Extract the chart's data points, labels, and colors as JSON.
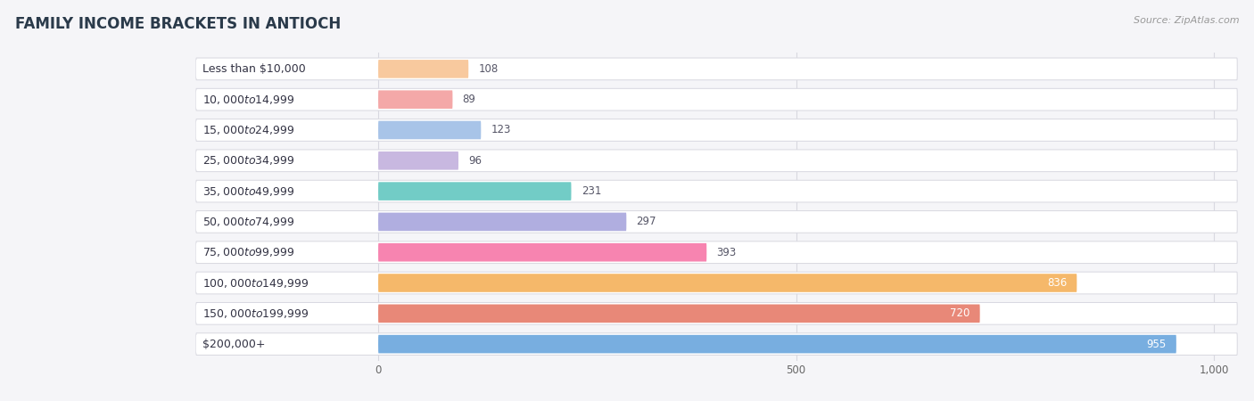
{
  "title": "FAMILY INCOME BRACKETS IN ANTIOCH",
  "source": "Source: ZipAtlas.com",
  "categories": [
    "Less than $10,000",
    "$10,000 to $14,999",
    "$15,000 to $24,999",
    "$25,000 to $34,999",
    "$35,000 to $49,999",
    "$50,000 to $74,999",
    "$75,000 to $99,999",
    "$100,000 to $149,999",
    "$150,000 to $199,999",
    "$200,000+"
  ],
  "values": [
    108,
    89,
    123,
    96,
    231,
    297,
    393,
    836,
    720,
    955
  ],
  "colors": [
    "#f8c99e",
    "#f4a8a8",
    "#a8c4e8",
    "#c8b8e0",
    "#72ccc6",
    "#b0aee0",
    "#f784b0",
    "#f5b86a",
    "#e88878",
    "#78aee0"
  ],
  "xmin": 0,
  "xmax": 1000,
  "xticks": [
    0,
    500,
    1000
  ],
  "xticklabels": [
    "0",
    "500",
    "1,000"
  ],
  "bg_color": "#f5f5f8",
  "bar_bg_color": "#ffffff",
  "bar_border_color": "#d8d8e0",
  "grid_color": "#d8d8e0",
  "title_color": "#2a3a4a",
  "label_color": "#333344",
  "source_color": "#999999",
  "value_color_dark": "#555566",
  "value_color_light": "#ffffff",
  "title_fontsize": 12,
  "label_fontsize": 9,
  "value_fontsize": 8.5,
  "tick_fontsize": 8.5,
  "source_fontsize": 8
}
